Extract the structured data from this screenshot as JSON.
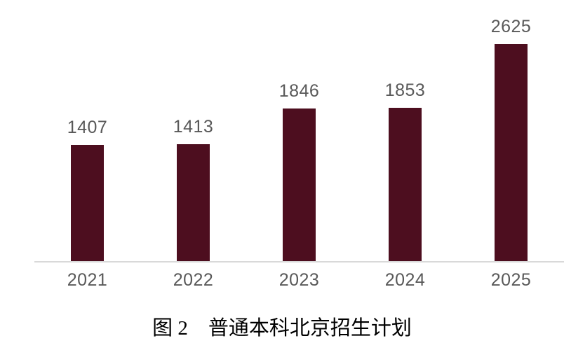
{
  "figure": {
    "caption": "图 2　普通本科北京招生计划"
  },
  "chart_data": {
    "type": "bar",
    "title": "图 2　普通本科北京招生计划",
    "categories": [
      "2021",
      "2022",
      "2023",
      "2024",
      "2025"
    ],
    "values": [
      1407,
      1413,
      1846,
      1853,
      2625
    ],
    "series_name": "普通本科北京招生计划",
    "xlabel": "",
    "ylabel": "",
    "ylim": [
      0,
      2625
    ],
    "grid": false,
    "legend": false,
    "data_labels": true,
    "colors": {
      "bar": "#4d0e1f",
      "value_label": "#595959",
      "tick_label": "#595959",
      "axis_line": "#d9d9d9",
      "caption": "#000000"
    }
  }
}
